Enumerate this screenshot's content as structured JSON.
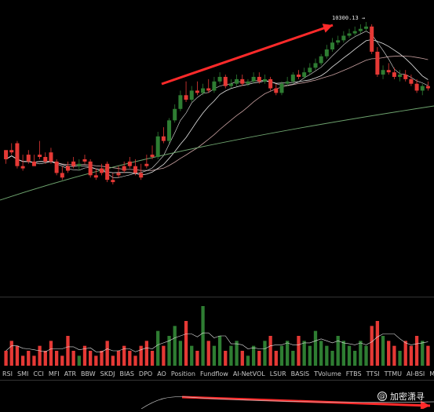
{
  "price_label": "10300.13 →",
  "watermark": {
    "icon": "at-icon",
    "text": "加密潇寻"
  },
  "indicator_tabs": [
    "RSI",
    "SMI",
    "CCI",
    "MFI",
    "ATR",
    "BBW",
    "SKDJ",
    "BIAS",
    "DPO",
    "AO",
    "Position",
    "Fundflow",
    "AI-NetVOL",
    "LSUR",
    "BASIS",
    "TVolume",
    "FTBS",
    "TTSI",
    "TTMU",
    "AI-BSI",
    "MLR"
  ],
  "colors": {
    "up": "#2e7d32",
    "down": "#e53935",
    "ma_light": "#e6e6e6",
    "ma_pink": "#c8a0a0",
    "ma_green": "#6fa56f",
    "annotation": "#ff2a2a",
    "background": "#000000"
  },
  "chart_data": {
    "type": "candlestick",
    "candles": [
      [
        62,
        62,
        58,
        56
      ],
      [
        62,
        65,
        61,
        60
      ],
      [
        65,
        66,
        55,
        54
      ],
      [
        55,
        60,
        54,
        53
      ],
      [
        60,
        62,
        57,
        56
      ],
      [
        57,
        60,
        55,
        55
      ],
      [
        60,
        66,
        59,
        58
      ],
      [
        59,
        61,
        57,
        56
      ],
      [
        61,
        63,
        57,
        56
      ],
      [
        57,
        58,
        52,
        51
      ],
      [
        52,
        55,
        50,
        49
      ],
      [
        55,
        57,
        53,
        52
      ],
      [
        57,
        59,
        55,
        54
      ],
      [
        55,
        58,
        56,
        53
      ],
      [
        58,
        60,
        57,
        56
      ],
      [
        57,
        58,
        51,
        50
      ],
      [
        51,
        54,
        50,
        49
      ],
      [
        54,
        56,
        52,
        51
      ],
      [
        56,
        57,
        49,
        48
      ],
      [
        49,
        52,
        48,
        47
      ],
      [
        52,
        55,
        51,
        50
      ],
      [
        55,
        57,
        53,
        52
      ],
      [
        57,
        59,
        55,
        54
      ],
      [
        55,
        58,
        52,
        51
      ],
      [
        52,
        56,
        50,
        49
      ],
      [
        56,
        60,
        55,
        54
      ],
      [
        60,
        64,
        59,
        58
      ],
      [
        59,
        70,
        68,
        58
      ],
      [
        68,
        72,
        66,
        65
      ],
      [
        66,
        76,
        75,
        65
      ],
      [
        75,
        82,
        80,
        74
      ],
      [
        80,
        88,
        86,
        79
      ],
      [
        86,
        92,
        84,
        83
      ],
      [
        84,
        90,
        88,
        83
      ],
      [
        88,
        92,
        87,
        86
      ],
      [
        87,
        91,
        89,
        86
      ],
      [
        89,
        93,
        88,
        87
      ],
      [
        88,
        94,
        92,
        87
      ],
      [
        92,
        96,
        94,
        91
      ],
      [
        94,
        95,
        90,
        89
      ],
      [
        90,
        93,
        91,
        89
      ],
      [
        91,
        95,
        93,
        90
      ],
      [
        93,
        95,
        91,
        90
      ],
      [
        91,
        93,
        92,
        90
      ],
      [
        92,
        96,
        94,
        91
      ],
      [
        94,
        96,
        92,
        91
      ],
      [
        92,
        95,
        93,
        91
      ],
      [
        93,
        94,
        89,
        88
      ],
      [
        89,
        91,
        87,
        86
      ],
      [
        87,
        92,
        91,
        86
      ],
      [
        91,
        94,
        92,
        90
      ],
      [
        92,
        96,
        95,
        91
      ],
      [
        95,
        97,
        94,
        93
      ],
      [
        94,
        98,
        96,
        93
      ],
      [
        96,
        100,
        98,
        95
      ],
      [
        98,
        102,
        100,
        97
      ],
      [
        100,
        104,
        103,
        99
      ],
      [
        103,
        108,
        106,
        102
      ],
      [
        106,
        111,
        109,
        105
      ],
      [
        109,
        112,
        110,
        108
      ],
      [
        110,
        114,
        112,
        109
      ],
      [
        112,
        115,
        113,
        111
      ],
      [
        113,
        116,
        114,
        112
      ],
      [
        114,
        117,
        115,
        113
      ],
      [
        115,
        118,
        116,
        114
      ],
      [
        116,
        117,
        105,
        104
      ],
      [
        105,
        107,
        95,
        94
      ],
      [
        95,
        99,
        97,
        93
      ],
      [
        97,
        100,
        96,
        95
      ],
      [
        96,
        98,
        94,
        93
      ],
      [
        94,
        97,
        95,
        92
      ],
      [
        95,
        97,
        93,
        92
      ],
      [
        93,
        95,
        91,
        90
      ],
      [
        91,
        93,
        88,
        87
      ],
      [
        88,
        91,
        90,
        86
      ],
      [
        90,
        92,
        89,
        88
      ]
    ],
    "volume": [
      3,
      5,
      4,
      2,
      3,
      2,
      4,
      3,
      5,
      3,
      2,
      6,
      3,
      2,
      4,
      3,
      2,
      3,
      5,
      2,
      3,
      4,
      3,
      2,
      4,
      5,
      3,
      7,
      4,
      6,
      8,
      5,
      9,
      4,
      3,
      12,
      5,
      4,
      6,
      3,
      4,
      5,
      3,
      2,
      4,
      3,
      5,
      6,
      3,
      4,
      5,
      3,
      6,
      5,
      4,
      7,
      5,
      4,
      3,
      6,
      5,
      4,
      3,
      5,
      4,
      8,
      9,
      6,
      5,
      4,
      3,
      5,
      4,
      6,
      5,
      4
    ]
  }
}
